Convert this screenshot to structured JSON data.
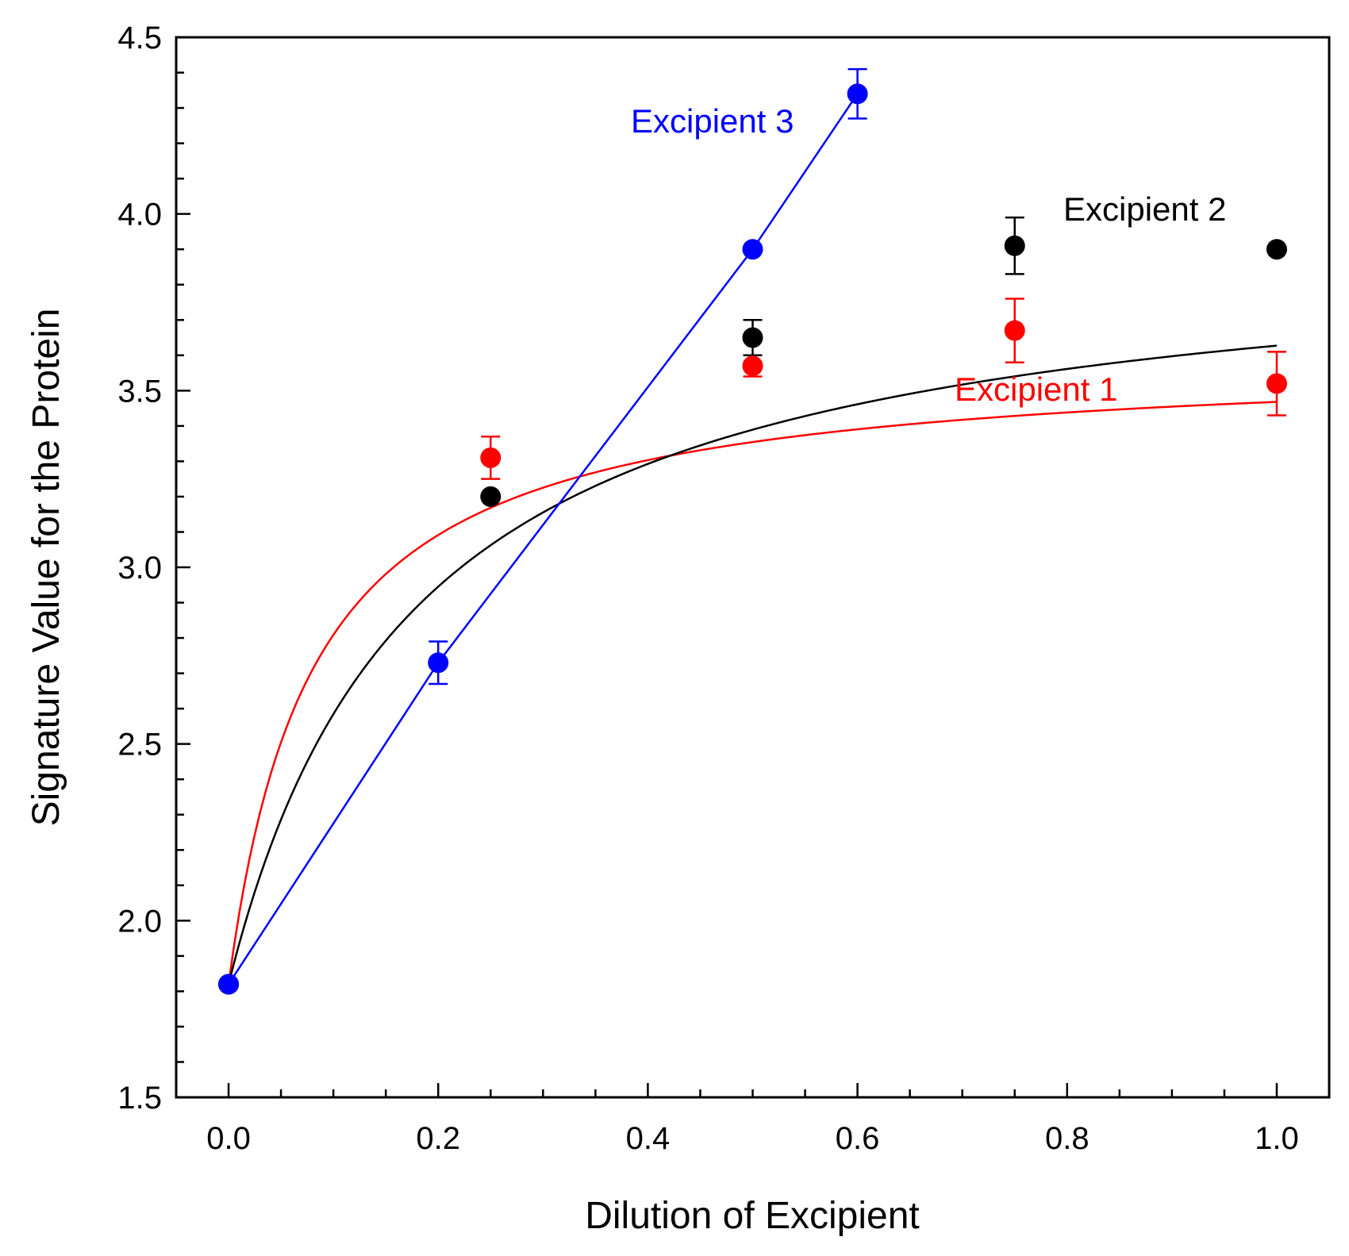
{
  "chart_data": {
    "type": "scatter",
    "title": "",
    "xlabel": "Dilution of Excipient",
    "ylabel": "Signature Value for the Protein",
    "xlim": [
      -0.05,
      1.05
    ],
    "ylim": [
      1.5,
      4.5
    ],
    "x_ticks": [
      "0.0",
      "0.2",
      "0.4",
      "0.6",
      "0.8",
      "1.0"
    ],
    "y_ticks": [
      "1.5",
      "2.0",
      "2.5",
      "3.0",
      "3.5",
      "4.0",
      "4.5"
    ],
    "grid": false,
    "series": [
      {
        "name": "Excipient 1",
        "color": "#ff0000",
        "x": [
          0.0,
          0.25,
          0.5,
          0.75,
          1.0
        ],
        "y": [
          1.82,
          3.31,
          3.57,
          3.67,
          3.52
        ],
        "err": [
          0.02,
          0.06,
          0.03,
          0.09,
          0.09
        ],
        "fit": {
          "kind": "saturation",
          "a": 1.82,
          "b": 1.78,
          "k": 12.5
        }
      },
      {
        "name": "Excipient 2",
        "color": "#000000",
        "x": [
          0.0,
          0.25,
          0.5,
          0.75,
          1.0
        ],
        "y": [
          1.82,
          3.2,
          3.65,
          3.91,
          3.9
        ],
        "err": [
          0.02,
          0.02,
          0.05,
          0.08,
          0.02
        ],
        "fit": {
          "kind": "saturation",
          "a": 1.82,
          "b": 2.13,
          "k": 5.6
        }
      },
      {
        "name": "Excipient 3",
        "color": "#0000ff",
        "x": [
          0.0,
          0.2,
          0.5,
          0.6
        ],
        "y": [
          1.82,
          2.73,
          3.9,
          4.34
        ],
        "err": [
          0.02,
          0.06,
          0.02,
          0.07
        ],
        "fit": {
          "kind": "connect"
        }
      }
    ],
    "labels": {
      "excipient1": "Excipient 1",
      "excipient2": "Excipient 2",
      "excipient3": "Excipient 3"
    }
  }
}
